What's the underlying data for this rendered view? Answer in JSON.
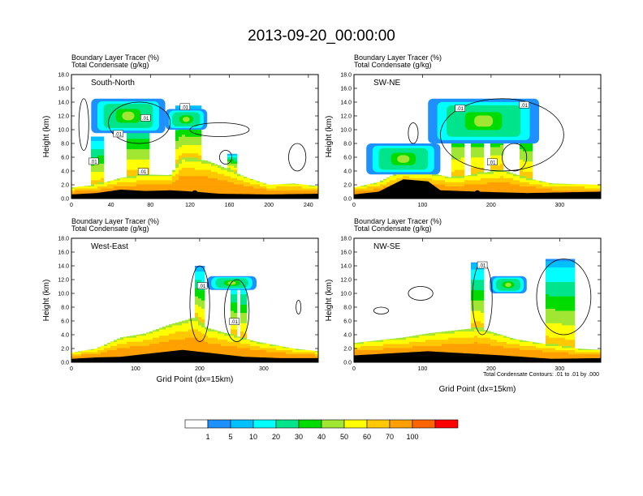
{
  "title": "2013-09-20_00:00:00",
  "footnote": "Total Condensate Contours: .01 to .01 by .000",
  "chart_data": [
    {
      "type": "heatmap",
      "panel_label": "South-North",
      "title_line1": "Boundary Layer Tracer    (%)",
      "title_line2": "Total Condensate    (g/kg)",
      "ylabel": "Height (km)",
      "xlabel": "",
      "ylim": [
        0,
        18
      ],
      "xlim": [
        0,
        250
      ],
      "y_ticks": [
        "0.0",
        "2.0",
        "4.0",
        "6.0",
        "8.0",
        "10.0",
        "12.0",
        "14.0",
        "16.0",
        "18.0"
      ],
      "x_ticks": [
        0,
        40,
        80,
        120,
        160,
        200,
        240
      ],
      "contour_labels": [
        ".01",
        ".01",
        ".01",
        ".01",
        ".01"
      ],
      "marker_x": 125
    },
    {
      "type": "heatmap",
      "panel_label": "SW-NE",
      "title_line1": "Boundary Layer Tracer    (%)",
      "title_line2": "Total Condensate    (g/kg)",
      "ylabel": "Height (km)",
      "xlabel": "",
      "ylim": [
        0,
        18
      ],
      "xlim": [
        0,
        360
      ],
      "y_ticks": [
        "0.0",
        "2.0",
        "4.0",
        "6.0",
        "8.0",
        "10.0",
        "12.0",
        "14.0",
        "16.0",
        "18.0"
      ],
      "x_ticks": [
        0,
        100,
        200,
        300
      ],
      "contour_labels": [
        ".01",
        ".01",
        ".01"
      ],
      "marker_x": 180
    },
    {
      "type": "heatmap",
      "panel_label": "West-East",
      "title_line1": "Boundary Layer Tracer    (%)",
      "title_line2": "Total Condensate    (g/kg)",
      "ylabel": "Height (km)",
      "xlabel": "Grid Point  (dx=15km)",
      "ylim": [
        0,
        18
      ],
      "xlim": [
        0,
        385
      ],
      "y_ticks": [
        "0.0",
        "2.0",
        "4.0",
        "6.0",
        "8.0",
        "10.0",
        "12.0",
        "14.0",
        "16.0",
        "18.0"
      ],
      "x_ticks": [
        0,
        100,
        200,
        300
      ],
      "contour_labels": [
        ".01",
        ".01"
      ],
      "marker_x": 193
    },
    {
      "type": "heatmap",
      "panel_label": "NW-SE",
      "title_line1": "Boundary Layer Tracer    (%)",
      "title_line2": "Total Condensate    (g/kg)",
      "ylabel": "Height (km)",
      "xlabel": "Grid Point  (dx=15km)",
      "ylim": [
        0,
        18
      ],
      "xlim": [
        0,
        360
      ],
      "y_ticks": [
        "0.0",
        "2.0",
        "4.0",
        "6.0",
        "8.0",
        "10.0",
        "12.0",
        "14.0",
        "16.0",
        "18.0"
      ],
      "x_ticks": [
        0,
        100,
        200,
        300
      ],
      "contour_labels": [
        ".01"
      ],
      "marker_x": 180
    }
  ],
  "colorbar": {
    "levels": [
      "1",
      "5",
      "10",
      "20",
      "30",
      "40",
      "50",
      "60",
      "70",
      "100"
    ],
    "colors": [
      "#ffffff",
      "#1e90ff",
      "#00bfff",
      "#00ffff",
      "#00e48c",
      "#00dc00",
      "#a0e632",
      "#ffff00",
      "#ffc800",
      "#ffa000",
      "#ff6400",
      "#ff0000"
    ]
  }
}
